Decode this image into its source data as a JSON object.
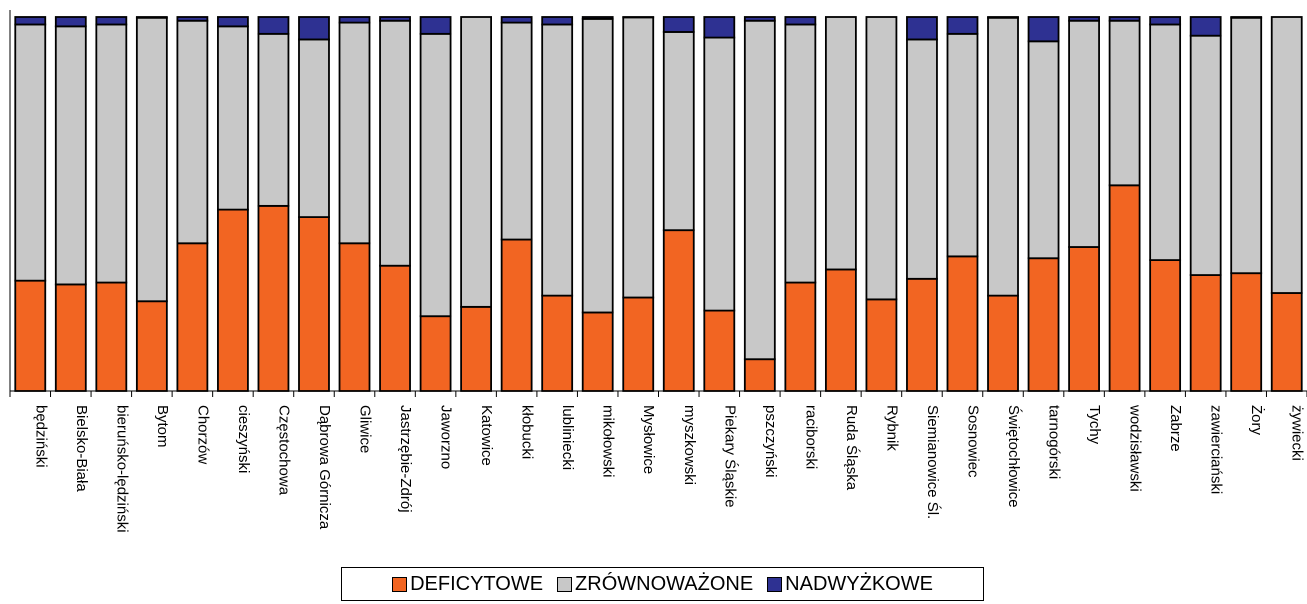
{
  "chart_data": {
    "type": "bar",
    "stacked": true,
    "normalized": true,
    "ylim": [
      0,
      100
    ],
    "grid": false,
    "legend_position": "bottom",
    "categories": [
      "będziński",
      "Bielsko-Biała",
      "bieruńsko-lędziński",
      "Bytom",
      "Chorzów",
      "cieszyński",
      "Częstochowa",
      "Dąbrowa Górnicza",
      "Gliwice",
      "Jastrzębie-Zdrój",
      "Jaworzno",
      "Katowice",
      "kłobucki",
      "lubliniecki",
      "mikołowski",
      "Mysłowice",
      "myszkowski",
      "Piekary Śląskie",
      "pszczyński",
      "raciborski",
      "Ruda Śląska",
      "Rybnik",
      "Siemianowice Śl.",
      "Sosnowiec",
      "Świętochłowice",
      "tarnogórski",
      "Tychy",
      "wodzisławski",
      "Zabrze",
      "zawierciański",
      "Żory",
      "żywiecki"
    ],
    "series": [
      {
        "name": "DEFICYTOWE",
        "color": "#f26522",
        "values": [
          29.5,
          28.5,
          29,
          24,
          39.5,
          48.5,
          49.5,
          46.5,
          39.5,
          33.5,
          20,
          22.5,
          40.5,
          25.5,
          21,
          25,
          43,
          21.5,
          8.5,
          29,
          32.5,
          24.5,
          30,
          36,
          25.5,
          35.5,
          38.5,
          55,
          35,
          31,
          31.5,
          26.2
        ]
      },
      {
        "name": "ZRÓWNOWAŻONE",
        "color": "#c8c8c8",
        "values": [
          68.5,
          69,
          69,
          75.8,
          59.5,
          49,
          46,
          47.5,
          59,
          65.5,
          75.5,
          77.5,
          58,
          72.5,
          78.5,
          74.9,
          53,
          73,
          90.5,
          69,
          67.5,
          75.5,
          64,
          59.5,
          74.3,
          58,
          60.5,
          44,
          63,
          64,
          68.3,
          73.8
        ]
      },
      {
        "name": "NADWYŻKOWE",
        "color": "#2e3192",
        "values": [
          2,
          2.5,
          2,
          0.2,
          1,
          2.5,
          4.5,
          6,
          1.5,
          1,
          4.5,
          0,
          1.5,
          2,
          0.5,
          0.1,
          4,
          5.5,
          1,
          2,
          0,
          0,
          6,
          4.5,
          0.2,
          6.5,
          1,
          1,
          2,
          5,
          0.2,
          0
        ]
      }
    ]
  }
}
